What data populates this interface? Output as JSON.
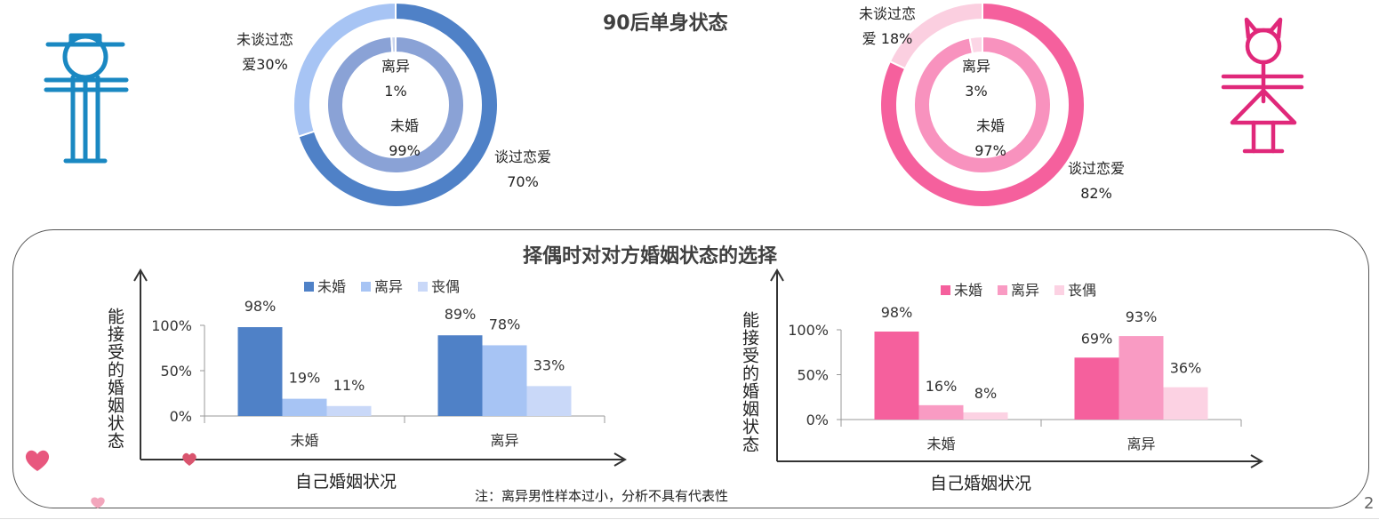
{
  "top_title": "90后单身状态",
  "bottom_title": "择偶时对对方婚姻状态的选择",
  "footnote": "注：离异男性样本过小，分析不具有代表性",
  "page_number": "2",
  "donut_male": {
    "outer": [
      {
        "line1": "谈过恋爱",
        "line2": "70%",
        "value": 70,
        "color": "#4F81C7"
      },
      {
        "line1": "未谈过恋",
        "line2": "爱30%",
        "value": 30,
        "color": "#A7C4F4"
      }
    ],
    "inner": [
      {
        "line1": "未婚",
        "line2": "99%",
        "value": 99,
        "color": "#8AA2D6"
      },
      {
        "line1": "离异",
        "line2": "1%",
        "value": 1,
        "color": "#C9D4EE"
      }
    ]
  },
  "donut_female": {
    "outer": [
      {
        "line1": "谈过恋爱",
        "line2": "82%",
        "value": 82,
        "color": "#F5609D"
      },
      {
        "line1": "未谈过恋",
        "line2": "爱 18%",
        "value": 18,
        "color": "#FBCFE0"
      }
    ],
    "inner": [
      {
        "line1": "未婚",
        "line2": "97%",
        "value": 97,
        "color": "#F892BE"
      },
      {
        "line1": "离异",
        "line2": "3%",
        "value": 3,
        "color": "#FCD6E6"
      }
    ]
  },
  "chart_left": {
    "ylabel": "能接受的婚姻状态",
    "xlabel": "自己婚姻状况",
    "yticks": [
      "0%",
      "50%",
      "100%"
    ],
    "legend": [
      "未婚",
      "离异",
      "丧偶"
    ]
  },
  "chart_right": {
    "ylabel": "能接受的婚姻状态",
    "xlabel": "自己婚姻状况",
    "yticks": [
      "0%",
      "50%",
      "100%"
    ],
    "legend": [
      "未婚",
      "离异",
      "丧偶"
    ]
  },
  "chart_data": [
    {
      "type": "bar",
      "title": "",
      "xlabel": "自己婚姻状况",
      "ylabel": "能接受的婚姻状态",
      "ylim": [
        0,
        100
      ],
      "categories": [
        "未婚",
        "离异"
      ],
      "series": [
        {
          "name": "未婚",
          "values": [
            98,
            89
          ],
          "labels": [
            "98%",
            "89%"
          ],
          "color": "#4F81C7"
        },
        {
          "name": "离异",
          "values": [
            19,
            78
          ],
          "labels": [
            "19%",
            "78%"
          ],
          "color": "#A7C4F4"
        },
        {
          "name": "丧偶",
          "values": [
            11,
            33
          ],
          "labels": [
            "11%",
            "33%"
          ],
          "color": "#C9D8F8"
        }
      ],
      "legend": "top"
    },
    {
      "type": "bar",
      "title": "",
      "xlabel": "自己婚姻状况",
      "ylabel": "能接受的婚姻状态",
      "ylim": [
        0,
        100
      ],
      "categories": [
        "未婚",
        "离异"
      ],
      "series": [
        {
          "name": "未婚",
          "values": [
            98,
            69
          ],
          "labels": [
            "98%",
            "69%"
          ],
          "color": "#F5609D"
        },
        {
          "name": "离异",
          "values": [
            16,
            93
          ],
          "labels": [
            "16%",
            "93%"
          ],
          "color": "#F99BC3"
        },
        {
          "name": "丧偶",
          "values": [
            8,
            36
          ],
          "labels": [
            "8%",
            "36%"
          ],
          "color": "#FCD2E3"
        }
      ],
      "legend": "top"
    }
  ]
}
